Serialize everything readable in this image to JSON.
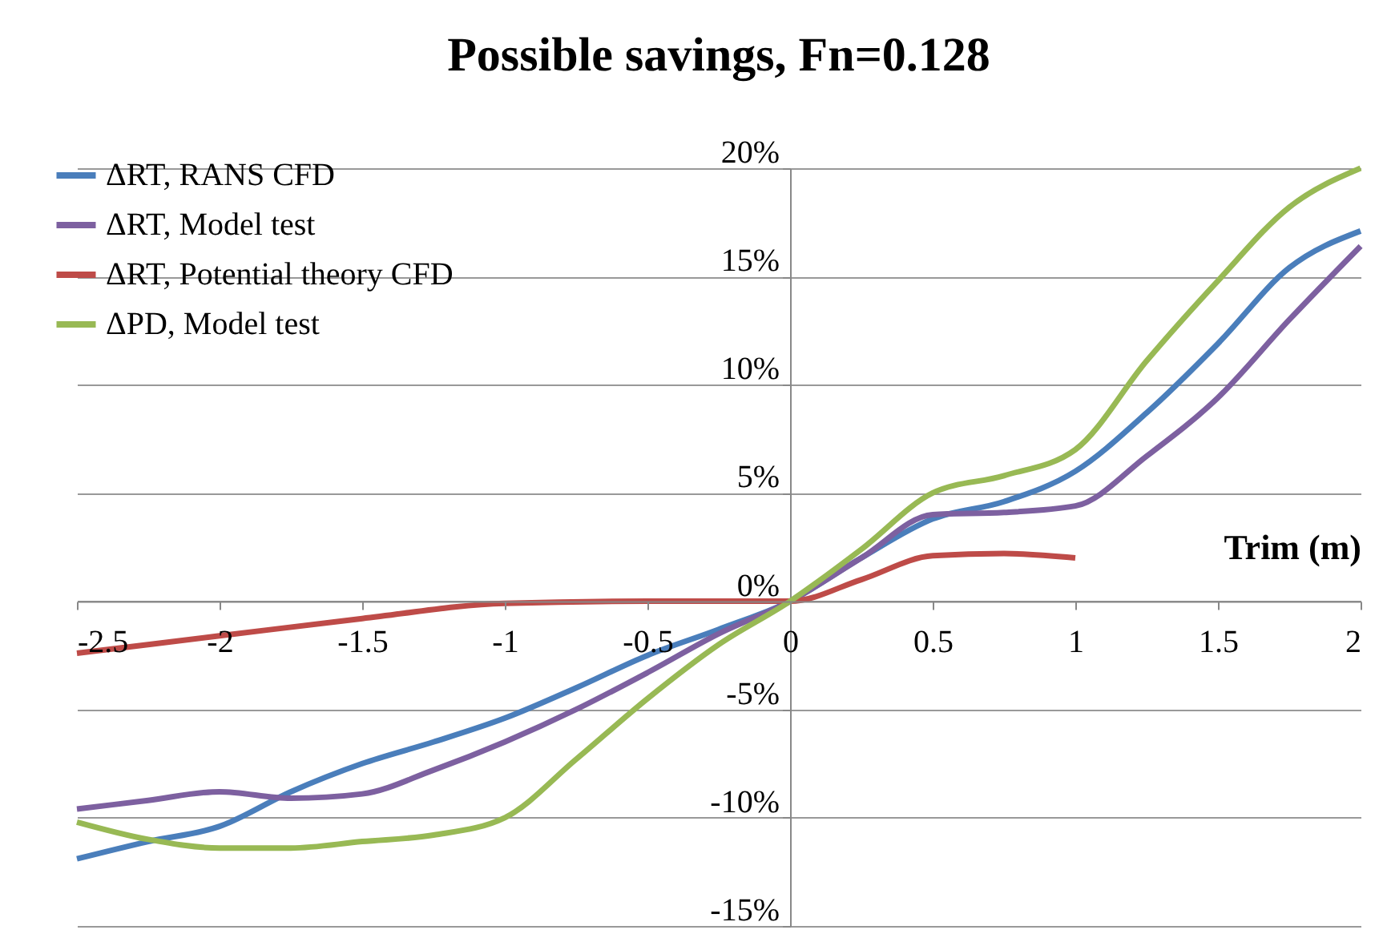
{
  "chart_data": {
    "type": "line",
    "title": "Possible savings, Fn=0.128",
    "xlabel": "Trim (m)",
    "xlim": [
      -2.5,
      2
    ],
    "xticks": [
      -2.5,
      -2,
      -1.5,
      -1,
      -0.5,
      0,
      0.5,
      1,
      1.5,
      2
    ],
    "ylim": [
      -15,
      20
    ],
    "yticks": [
      {
        "value": -15,
        "label": "-15%"
      },
      {
        "value": -10,
        "label": "-10%"
      },
      {
        "value": -5,
        "label": "-5%"
      },
      {
        "value": 0,
        "label": "0%"
      },
      {
        "value": 5,
        "label": "5%"
      },
      {
        "value": 10,
        "label": "10%"
      },
      {
        "value": 15,
        "label": "15%"
      },
      {
        "value": 20,
        "label": "20%"
      }
    ],
    "grid": "y",
    "legend": "top left",
    "marker": "none",
    "line_style": "solid",
    "series": [
      {
        "name": "ΔRT, RANS CFD",
        "color": "#4a7ebb",
        "x": [
          -2.5,
          -2.25,
          -2,
          -1.75,
          -1.5,
          -1.25,
          -1,
          -0.75,
          -0.5,
          -0.25,
          0,
          0.25,
          0.5,
          0.75,
          1,
          1.25,
          1.5,
          1.75,
          2
        ],
        "values": [
          -11.9,
          -11.1,
          -10.4,
          -8.8,
          -7.5,
          -6.5,
          -5.4,
          -4,
          -2.5,
          -1.3,
          0,
          2,
          3.8,
          4.6,
          6,
          8.7,
          11.9,
          15.4,
          17.1
        ]
      },
      {
        "name": "ΔRT, Model test",
        "color": "#7d60a0",
        "x": [
          -2.5,
          -2.25,
          -2,
          -1.75,
          -1.5,
          -1.25,
          -1,
          -0.75,
          -0.5,
          -0.25,
          0,
          0.25,
          0.5,
          0.75,
          1,
          1.25,
          1.5,
          1.75,
          2
        ],
        "values": [
          -9.6,
          -9.2,
          -8.8,
          -9.1,
          -8.9,
          -7.8,
          -6.5,
          -5,
          -3.3,
          -1.5,
          0,
          2,
          4,
          4.1,
          4.4,
          6.7,
          9.4,
          13,
          16.4
        ]
      },
      {
        "name": "ΔRT, Potential theory CFD",
        "color": "#be4b48",
        "x": [
          -2.5,
          -2,
          -1.5,
          -1,
          -0.5,
          0,
          0.25,
          0.5,
          0.75,
          1
        ],
        "values": [
          -2.4,
          -1.6,
          -0.8,
          -0.1,
          0,
          0,
          1,
          2.1,
          2.2,
          2
        ]
      },
      {
        "name": "ΔPD, Model test",
        "color": "#98b954",
        "x": [
          -2.5,
          -2.25,
          -2,
          -1.75,
          -1.5,
          -1.25,
          -1,
          -0.75,
          -0.5,
          -0.25,
          0,
          0.25,
          0.5,
          0.75,
          1,
          1.25,
          1.5,
          1.75,
          2
        ],
        "values": [
          -10.2,
          -11,
          -11.4,
          -11.4,
          -11.1,
          -10.8,
          -10,
          -7.3,
          -4.5,
          -2,
          0,
          2.4,
          5,
          5.8,
          7,
          11.1,
          14.8,
          18.2,
          20
        ]
      }
    ]
  }
}
